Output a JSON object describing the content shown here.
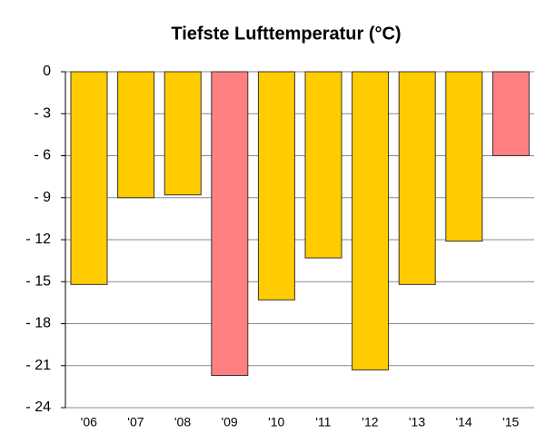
{
  "chart_data": {
    "type": "bar",
    "title": "Tiefste Lufttemperatur (°C)",
    "categories": [
      "'06",
      "'07",
      "'08",
      "'09",
      "'10",
      "'11",
      "'12",
      "'13",
      "'14",
      "'15"
    ],
    "values": [
      -15.2,
      -9.0,
      -8.8,
      -21.7,
      -16.3,
      -13.3,
      -21.3,
      -15.2,
      -12.1,
      -6.0
    ],
    "colors": [
      "#ffcc00",
      "#ffcc00",
      "#ffcc00",
      "#ff8080",
      "#ffcc00",
      "#ffcc00",
      "#ffcc00",
      "#ffcc00",
      "#ffcc00",
      "#ff8080"
    ],
    "ylim": [
      -24,
      0
    ],
    "yticks": [
      0,
      {
        "value": -3,
        "label": "- 3"
      },
      {
        "value": -6,
        "label": "- 6"
      },
      {
        "value": -9,
        "label": "- 9"
      },
      {
        "value": -12,
        "label": "- 12"
      },
      {
        "value": -15,
        "label": "- 15"
      },
      {
        "value": -18,
        "label": "- 18"
      },
      {
        "value": -21,
        "label": "- 21"
      },
      {
        "value": -24,
        "label": "- 24"
      }
    ],
    "grid": true
  }
}
